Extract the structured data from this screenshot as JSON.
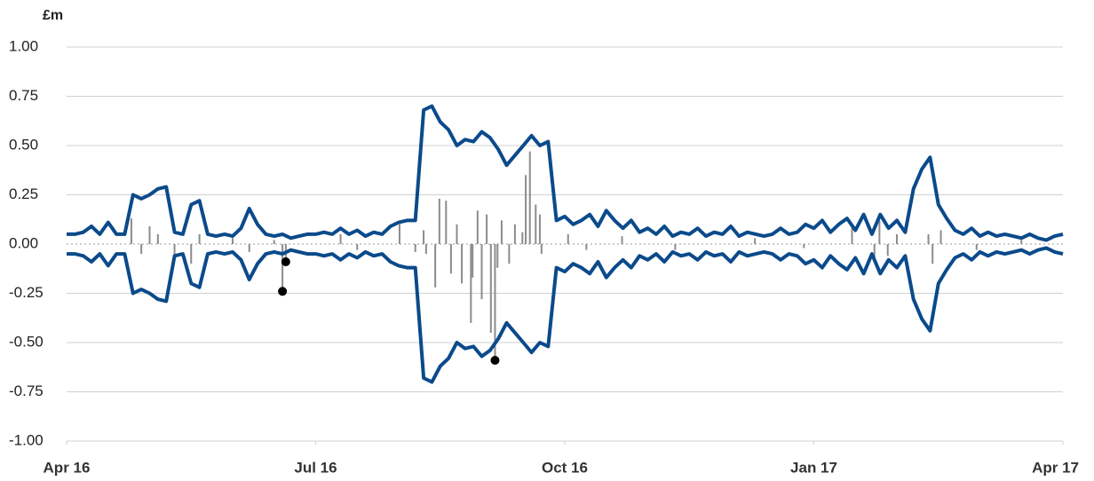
{
  "chart_data": {
    "type": "line",
    "y_label": "£m",
    "xlim": [
      0,
      12
    ],
    "xticks": [
      {
        "value": 0,
        "label": "Apr 16"
      },
      {
        "value": 3,
        "label": "Jul 16"
      },
      {
        "value": 6,
        "label": "Oct 16"
      },
      {
        "value": 9,
        "label": "Jan 17"
      },
      {
        "value": 12,
        "label": "Apr 17"
      }
    ],
    "ylim": [
      -1,
      1
    ],
    "yticks": [
      {
        "value": -1,
        "label": "-1.00"
      },
      {
        "value": -0.75,
        "label": "-0.75"
      },
      {
        "value": -0.5,
        "label": "-0.50"
      },
      {
        "value": -0.25,
        "label": "-0.25"
      },
      {
        "value": 0,
        "label": "0.00"
      },
      {
        "value": 0.25,
        "label": "0.25"
      },
      {
        "value": 0.5,
        "label": "0.50"
      },
      {
        "value": 0.75,
        "label": "0.75"
      },
      {
        "value": 1,
        "label": "1.00"
      }
    ],
    "grid": true,
    "series": [
      {
        "kind": "line",
        "color": "#0b4a8b",
        "x": [
          0,
          0.1,
          0.2,
          0.3,
          0.4,
          0.5,
          0.6,
          0.7,
          0.8,
          0.9,
          1,
          1.1,
          1.2,
          1.3,
          1.4,
          1.5,
          1.6,
          1.7,
          1.8,
          1.9,
          2,
          2.1,
          2.2,
          2.3,
          2.4,
          2.5,
          2.6,
          2.7,
          2.8,
          2.9,
          3,
          3.1,
          3.2,
          3.3,
          3.4,
          3.5,
          3.6,
          3.7,
          3.8,
          3.9,
          4,
          4.1,
          4.2,
          4.3,
          4.4,
          4.5,
          4.6,
          4.7,
          4.8,
          4.9,
          5,
          5.1,
          5.2,
          5.3,
          5.4,
          5.5,
          5.6,
          5.7,
          5.8,
          5.9,
          6,
          6.1,
          6.2,
          6.3,
          6.4,
          6.5,
          6.6,
          6.7,
          6.8,
          6.9,
          7,
          7.1,
          7.2,
          7.3,
          7.4,
          7.5,
          7.6,
          7.7,
          7.8,
          7.9,
          8,
          8.1,
          8.2,
          8.3,
          8.4,
          8.5,
          8.6,
          8.7,
          8.8,
          8.9,
          9,
          9.1,
          9.2,
          9.3,
          9.4,
          9.5,
          9.6,
          9.7,
          9.8,
          9.9,
          10,
          10.1,
          10.2,
          10.3,
          10.4,
          10.5,
          10.6,
          10.7,
          10.8,
          10.9,
          11,
          11.1,
          11.2,
          11.3,
          11.4,
          11.5,
          11.6,
          11.7,
          11.8,
          11.9,
          12
        ],
        "values": [
          0.05,
          0.05,
          0.06,
          0.09,
          0.05,
          0.11,
          0.05,
          0.05,
          0.25,
          0.23,
          0.25,
          0.28,
          0.29,
          0.06,
          0.05,
          0.2,
          0.22,
          0.05,
          0.04,
          0.05,
          0.04,
          0.08,
          0.18,
          0.1,
          0.05,
          0.04,
          0.05,
          0.03,
          0.04,
          0.05,
          0.05,
          0.06,
          0.05,
          0.08,
          0.05,
          0.07,
          0.04,
          0.06,
          0.05,
          0.09,
          0.11,
          0.12,
          0.12,
          0.68,
          0.7,
          0.62,
          0.58,
          0.5,
          0.53,
          0.52,
          0.57,
          0.54,
          0.48,
          0.4,
          0.45,
          0.5,
          0.55,
          0.5,
          0.52,
          0.12,
          0.14,
          0.1,
          0.12,
          0.15,
          0.09,
          0.17,
          0.12,
          0.08,
          0.12,
          0.06,
          0.08,
          0.05,
          0.09,
          0.04,
          0.06,
          0.05,
          0.08,
          0.04,
          0.06,
          0.05,
          0.09,
          0.04,
          0.06,
          0.05,
          0.04,
          0.05,
          0.08,
          0.05,
          0.06,
          0.1,
          0.08,
          0.12,
          0.06,
          0.1,
          0.13,
          0.07,
          0.15,
          0.05,
          0.15,
          0.08,
          0.12,
          0.06,
          0.28,
          0.38,
          0.44,
          0.2,
          0.13,
          0.07,
          0.05,
          0.08,
          0.04,
          0.06,
          0.04,
          0.05,
          0.04,
          0.03,
          0.05,
          0.03,
          0.02,
          0.04,
          0.05
        ]
      },
      {
        "kind": "line",
        "color": "#0b4a8b",
        "x": [
          0,
          0.1,
          0.2,
          0.3,
          0.4,
          0.5,
          0.6,
          0.7,
          0.8,
          0.9,
          1,
          1.1,
          1.2,
          1.3,
          1.4,
          1.5,
          1.6,
          1.7,
          1.8,
          1.9,
          2,
          2.1,
          2.2,
          2.3,
          2.4,
          2.5,
          2.6,
          2.7,
          2.8,
          2.9,
          3,
          3.1,
          3.2,
          3.3,
          3.4,
          3.5,
          3.6,
          3.7,
          3.8,
          3.9,
          4,
          4.1,
          4.2,
          4.3,
          4.4,
          4.5,
          4.6,
          4.7,
          4.8,
          4.9,
          5,
          5.1,
          5.2,
          5.3,
          5.4,
          5.5,
          5.6,
          5.7,
          5.8,
          5.9,
          6,
          6.1,
          6.2,
          6.3,
          6.4,
          6.5,
          6.6,
          6.7,
          6.8,
          6.9,
          7,
          7.1,
          7.2,
          7.3,
          7.4,
          7.5,
          7.6,
          7.7,
          7.8,
          7.9,
          8,
          8.1,
          8.2,
          8.3,
          8.4,
          8.5,
          8.6,
          8.7,
          8.8,
          8.9,
          9,
          9.1,
          9.2,
          9.3,
          9.4,
          9.5,
          9.6,
          9.7,
          9.8,
          9.9,
          10,
          10.1,
          10.2,
          10.3,
          10.4,
          10.5,
          10.6,
          10.7,
          10.8,
          10.9,
          11,
          11.1,
          11.2,
          11.3,
          11.4,
          11.5,
          11.6,
          11.7,
          11.8,
          11.9,
          12
        ],
        "values": [
          -0.05,
          -0.05,
          -0.06,
          -0.09,
          -0.05,
          -0.11,
          -0.05,
          -0.05,
          -0.25,
          -0.23,
          -0.25,
          -0.28,
          -0.29,
          -0.06,
          -0.05,
          -0.2,
          -0.22,
          -0.05,
          -0.04,
          -0.05,
          -0.04,
          -0.08,
          -0.18,
          -0.1,
          -0.05,
          -0.04,
          -0.05,
          -0.03,
          -0.04,
          -0.05,
          -0.05,
          -0.06,
          -0.05,
          -0.08,
          -0.05,
          -0.07,
          -0.04,
          -0.06,
          -0.05,
          -0.09,
          -0.11,
          -0.12,
          -0.12,
          -0.68,
          -0.7,
          -0.62,
          -0.58,
          -0.5,
          -0.53,
          -0.52,
          -0.57,
          -0.54,
          -0.48,
          -0.4,
          -0.45,
          -0.5,
          -0.55,
          -0.5,
          -0.52,
          -0.12,
          -0.14,
          -0.1,
          -0.12,
          -0.15,
          -0.09,
          -0.17,
          -0.12,
          -0.08,
          -0.12,
          -0.06,
          -0.08,
          -0.05,
          -0.09,
          -0.04,
          -0.06,
          -0.05,
          -0.08,
          -0.04,
          -0.06,
          -0.05,
          -0.09,
          -0.04,
          -0.06,
          -0.05,
          -0.04,
          -0.05,
          -0.08,
          -0.05,
          -0.06,
          -0.1,
          -0.08,
          -0.12,
          -0.06,
          -0.1,
          -0.13,
          -0.07,
          -0.15,
          -0.05,
          -0.15,
          -0.08,
          -0.12,
          -0.06,
          -0.28,
          -0.38,
          -0.44,
          -0.2,
          -0.13,
          -0.07,
          -0.05,
          -0.08,
          -0.04,
          -0.06,
          -0.04,
          -0.05,
          -0.04,
          -0.03,
          -0.05,
          -0.03,
          -0.02,
          -0.04,
          -0.05
        ]
      },
      {
        "kind": "bar",
        "color": "#8c8c8c",
        "x": [
          0.78,
          0.9,
          1,
          1.1,
          1.3,
          1.5,
          1.6,
          2,
          2.2,
          2.5,
          2.6,
          2.64,
          3.3,
          3.5,
          4.01,
          4.2,
          4.3,
          4.33,
          4.44,
          4.49,
          4.57,
          4.63,
          4.7,
          4.76,
          4.87,
          4.89,
          4.95,
          5,
          5.06,
          5.11,
          5.16,
          5.19,
          5.24,
          5.33,
          5.4,
          5.49,
          5.53,
          5.58,
          5.65,
          5.7,
          5.72,
          6.04,
          6.26,
          6.69,
          7.33,
          8.29,
          8.88,
          9.46,
          9.73,
          9.79,
          9.89,
          10,
          10.38,
          10.43,
          10.53,
          10.96,
          11.5
        ],
        "values": [
          0.13,
          -0.05,
          0.09,
          0.05,
          -0.07,
          -0.1,
          0.05,
          0.03,
          -0.04,
          0.02,
          -0.24,
          -0.09,
          0.05,
          -0.03,
          0.1,
          -0.04,
          0.07,
          -0.05,
          -0.22,
          0.23,
          0.22,
          -0.15,
          0.1,
          -0.2,
          -0.4,
          -0.17,
          0.17,
          -0.28,
          0.15,
          -0.45,
          -0.59,
          -0.12,
          0.12,
          -0.1,
          0.1,
          0.06,
          0.35,
          0.47,
          0.2,
          0.15,
          -0.05,
          0.05,
          -0.03,
          0.04,
          -0.03,
          0.03,
          -0.02,
          0.1,
          -0.08,
          0.12,
          -0.06,
          0.05,
          0.05,
          -0.1,
          0.07,
          -0.03,
          0.02
        ]
      },
      {
        "kind": "dot",
        "color": "#000000",
        "x": [
          2.64,
          2.6,
          5.16
        ],
        "values": [
          -0.09,
          -0.24,
          -0.59
        ]
      }
    ]
  }
}
